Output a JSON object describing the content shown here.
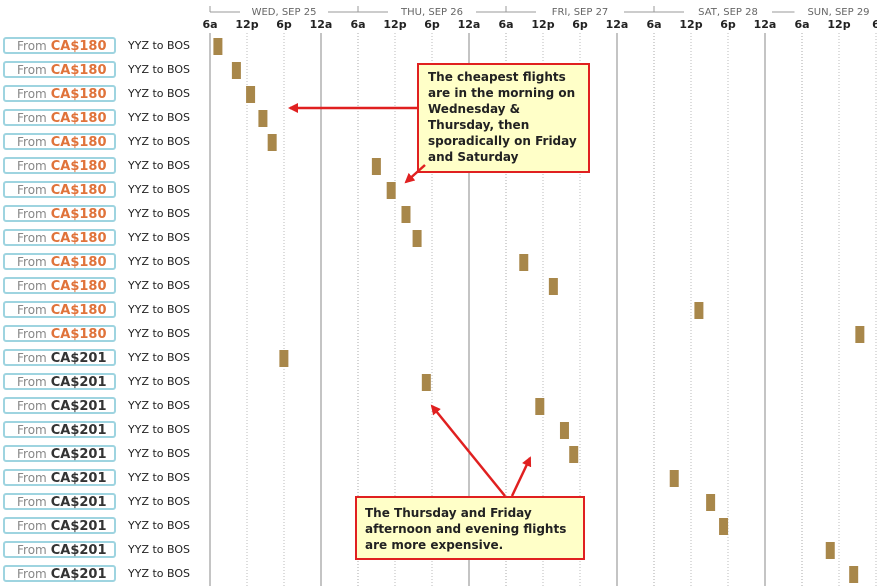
{
  "timeline": {
    "days": [
      {
        "label": "WED, SEP 25",
        "ticks": [
          "6a",
          "12p",
          "6p",
          "12a"
        ]
      },
      {
        "label": "THU, SEP 26",
        "ticks": [
          "6a",
          "12p",
          "6p",
          "12a"
        ]
      },
      {
        "label": "FRI, SEP 27",
        "ticks": [
          "6a",
          "12p",
          "6p",
          "12a"
        ]
      },
      {
        "label": "SAT, SEP 28",
        "ticks": [
          "6a",
          "12p",
          "6p",
          "12a"
        ]
      },
      {
        "label": "SUN, SEP 29",
        "ticks": [
          "6a",
          "12p",
          "6"
        ]
      }
    ]
  },
  "from_label": "From",
  "flights": [
    {
      "price": "CA$180",
      "route": "YYZ to BOS",
      "day": 0,
      "hour": 7.2,
      "tier": "cheap"
    },
    {
      "price": "CA$180",
      "route": "YYZ to BOS",
      "day": 0,
      "hour": 10.2,
      "tier": "cheap"
    },
    {
      "price": "CA$180",
      "route": "YYZ to BOS",
      "day": 0,
      "hour": 12.5,
      "tier": "cheap"
    },
    {
      "price": "CA$180",
      "route": "YYZ to BOS",
      "day": 0,
      "hour": 14.5,
      "tier": "cheap"
    },
    {
      "price": "CA$180",
      "route": "YYZ to BOS",
      "day": 0,
      "hour": 16.0,
      "tier": "cheap"
    },
    {
      "price": "CA$180",
      "route": "YYZ to BOS",
      "day": 1,
      "hour": 8.9,
      "tier": "cheap"
    },
    {
      "price": "CA$180",
      "route": "YYZ to BOS",
      "day": 1,
      "hour": 11.3,
      "tier": "cheap"
    },
    {
      "price": "CA$180",
      "route": "YYZ to BOS",
      "day": 1,
      "hour": 13.7,
      "tier": "cheap"
    },
    {
      "price": "CA$180",
      "route": "YYZ to BOS",
      "day": 1,
      "hour": 15.5,
      "tier": "cheap"
    },
    {
      "price": "CA$180",
      "route": "YYZ to BOS",
      "day": 2,
      "hour": 8.8,
      "tier": "cheap"
    },
    {
      "price": "CA$180",
      "route": "YYZ to BOS",
      "day": 2,
      "hour": 13.6,
      "tier": "cheap"
    },
    {
      "price": "CA$180",
      "route": "YYZ to BOS",
      "day": 3,
      "hour": 13.2,
      "tier": "cheap"
    },
    {
      "price": "CA$180",
      "route": "YYZ to BOS",
      "day": 4,
      "hour": 15.3,
      "tier": "cheap"
    },
    {
      "price": "CA$201",
      "route": "YYZ to BOS",
      "day": 0,
      "hour": 17.9,
      "tier": "normal"
    },
    {
      "price": "CA$201",
      "route": "YYZ to BOS",
      "day": 1,
      "hour": 17.0,
      "tier": "normal"
    },
    {
      "price": "CA$201",
      "route": "YYZ to BOS",
      "day": 2,
      "hour": 11.4,
      "tier": "normal"
    },
    {
      "price": "CA$201",
      "route": "YYZ to BOS",
      "day": 2,
      "hour": 15.4,
      "tier": "normal"
    },
    {
      "price": "CA$201",
      "route": "YYZ to BOS",
      "day": 2,
      "hour": 16.9,
      "tier": "normal"
    },
    {
      "price": "CA$201",
      "route": "YYZ to BOS",
      "day": 3,
      "hour": 9.2,
      "tier": "normal"
    },
    {
      "price": "CA$201",
      "route": "YYZ to BOS",
      "day": 3,
      "hour": 15.1,
      "tier": "normal"
    },
    {
      "price": "CA$201",
      "route": "YYZ to BOS",
      "day": 3,
      "hour": 17.2,
      "tier": "normal"
    },
    {
      "price": "CA$201",
      "route": "YYZ to BOS",
      "day": 4,
      "hour": 10.5,
      "tier": "normal"
    },
    {
      "price": "CA$201",
      "route": "YYZ to BOS",
      "day": 4,
      "hour": 14.3,
      "tier": "normal"
    }
  ],
  "annotations": {
    "cheap_note": "The cheapest flights are in the morning on Wednesday & Thursday, then sporadically on Friday and Saturday",
    "expensive_note": "The Thursday and Friday afternoon and evening flights are more expensive."
  },
  "colors": {
    "bar": "#a8874a",
    "cheap_price": "#e0733a",
    "button_border": "#9ed4e0",
    "callout_border": "#e02020",
    "callout_bg": "#ffffc8",
    "grid_major": "#aaaaaa",
    "grid_minor": "#bbbbbb"
  }
}
